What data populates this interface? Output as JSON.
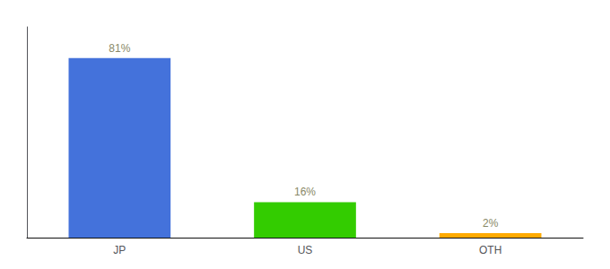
{
  "chart_data": {
    "type": "bar",
    "categories": [
      "JP",
      "US",
      "OTH"
    ],
    "values": [
      81,
      16,
      2
    ],
    "value_labels": [
      "81%",
      "16%",
      "2%"
    ],
    "colors": [
      "#4472db",
      "#33cc00",
      "#ffaa00"
    ],
    "ylim": [
      0,
      95
    ],
    "data_labels": true,
    "tick_labels": "x",
    "grid": false
  }
}
